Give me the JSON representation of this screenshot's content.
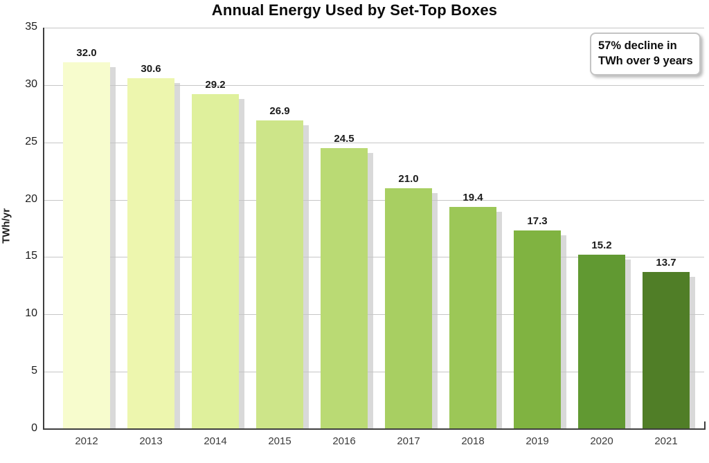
{
  "title": "Annual Energy Used by Set-Top Boxes",
  "annotation": {
    "line1": "57% decline in",
    "line2": "TWh over 9 years"
  },
  "chart_data": {
    "type": "bar",
    "title": "Annual Energy Used by Set-Top Boxes",
    "categories": [
      "2012",
      "2013",
      "2014",
      "2015",
      "2016",
      "2017",
      "2018",
      "2019",
      "2020",
      "2021"
    ],
    "values": [
      32.0,
      30.6,
      29.2,
      26.9,
      24.5,
      21.0,
      19.4,
      17.3,
      15.2,
      13.7
    ],
    "value_labels": [
      "32.0",
      "30.6",
      "29.2",
      "26.9",
      "24.5",
      "21.0",
      "19.4",
      "17.3",
      "15.2",
      "13.7"
    ],
    "bar_colors": [
      "#f7fccd",
      "#edf6ae",
      "#dff09c",
      "#cde589",
      "#bada74",
      "#a8cf62",
      "#9cc757",
      "#80b341",
      "#619932",
      "#507e27"
    ],
    "xlabel": "",
    "ylabel": "TWh/yr",
    "ylim": [
      0,
      35
    ],
    "yticks": [
      0,
      5,
      10,
      15,
      20,
      25,
      30,
      35
    ],
    "grid": true,
    "legend": false,
    "annotation_text": "57% decline in TWh over 9 years",
    "colors": {
      "axis": "#3e3e3e",
      "gridline": "#c6c6c6",
      "bar_shadow": "#d9d9d9",
      "text": "#1c1c1c"
    }
  }
}
